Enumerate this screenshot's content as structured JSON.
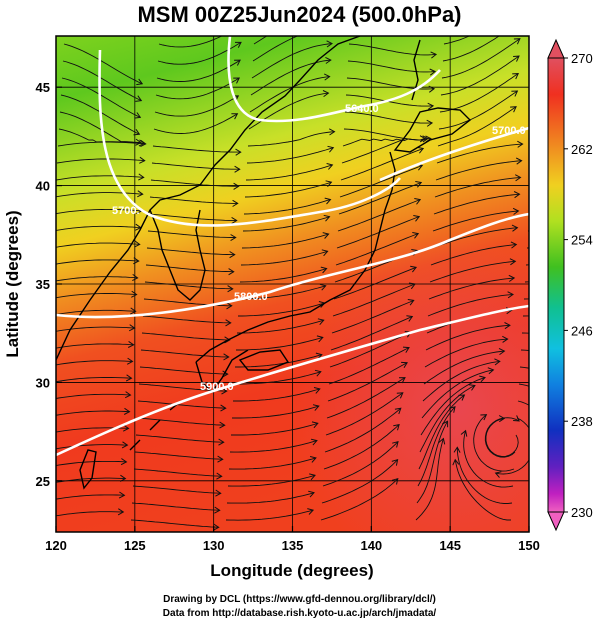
{
  "title": "MSM 00Z25Jun2024 (500.0hPa)",
  "axes": {
    "xlabel": "Longitude (degrees)",
    "ylabel": "Latitude  (degrees)",
    "xrange": [
      120,
      150
    ],
    "yrange": [
      22.4,
      47.6
    ],
    "xticks": [
      "120",
      "125",
      "130",
      "135",
      "140",
      "145",
      "150"
    ],
    "yticks": [
      "25",
      "30",
      "35",
      "40",
      "45"
    ]
  },
  "colorbar": {
    "min": 230,
    "max": 270,
    "labels": [
      "270",
      "262",
      "254",
      "246",
      "238",
      "230"
    ],
    "colors": [
      "#e05060",
      "#f03020",
      "#f08020",
      "#f0d020",
      "#b0e020",
      "#40c020",
      "#10c090",
      "#10c0e0",
      "#1080e0",
      "#1030c0",
      "#6020c0",
      "#c020c0",
      "#f060c0"
    ]
  },
  "contours": [
    {
      "label": "5640.0"
    },
    {
      "label": "5700.0"
    },
    {
      "label": "5700."
    },
    {
      "label": "5800.0"
    },
    {
      "label": "5900.0"
    }
  ],
  "credits": {
    "line1": "Drawing by DCL (https://www.gfd-dennou.org/library/dcl/)",
    "line2": "Data from http://database.rish.kyoto-u.ac.jp/arch/jmadata/"
  }
}
